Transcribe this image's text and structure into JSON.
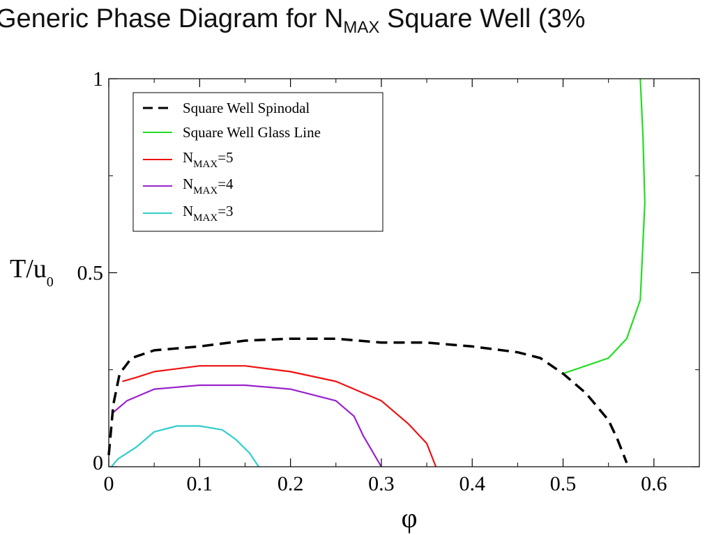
{
  "slide": {
    "title_pre": "Generic Phase Diagram for N",
    "title_sub": "MAX",
    "title_post": " Square Well  (3%"
  },
  "chart_data": {
    "type": "line",
    "title": "",
    "xlabel": "φ",
    "ylabel_main": "T/u",
    "ylabel_sub": "0",
    "xlim": [
      0,
      0.65
    ],
    "ylim": [
      0,
      1
    ],
    "x_ticks": [
      "0",
      "0.1",
      "0.2",
      "0.3",
      "0.4",
      "0.5",
      "0.6"
    ],
    "y_ticks": [
      "0",
      "0.5",
      "1"
    ],
    "grid": false,
    "legend_position": "top-left",
    "series": [
      {
        "key": "spinodal",
        "legend": "Square Well Spinodal",
        "color": "#000000",
        "dash": true,
        "points": [
          [
            0.0,
            0.03
          ],
          [
            0.005,
            0.16
          ],
          [
            0.012,
            0.24
          ],
          [
            0.025,
            0.28
          ],
          [
            0.05,
            0.3
          ],
          [
            0.1,
            0.31
          ],
          [
            0.15,
            0.325
          ],
          [
            0.2,
            0.33
          ],
          [
            0.25,
            0.33
          ],
          [
            0.3,
            0.32
          ],
          [
            0.35,
            0.32
          ],
          [
            0.4,
            0.31
          ],
          [
            0.45,
            0.295
          ],
          [
            0.475,
            0.28
          ],
          [
            0.5,
            0.24
          ],
          [
            0.525,
            0.19
          ],
          [
            0.55,
            0.12
          ],
          [
            0.56,
            0.07
          ],
          [
            0.57,
            0.01
          ]
        ]
      },
      {
        "key": "glass",
        "legend": "Square Well Glass Line",
        "color": "#22dd22",
        "dash": false,
        "points": [
          [
            0.5,
            0.24
          ],
          [
            0.55,
            0.28
          ],
          [
            0.57,
            0.33
          ],
          [
            0.585,
            0.43
          ],
          [
            0.59,
            0.68
          ],
          [
            0.588,
            0.85
          ],
          [
            0.585,
            1.0
          ]
        ]
      },
      {
        "key": "nmax5",
        "legend_main": "N",
        "legend_sub": "MAX",
        "legend_suffix": "=5",
        "color": "#ee1111",
        "dash": false,
        "points": [
          [
            0.015,
            0.22
          ],
          [
            0.03,
            0.23
          ],
          [
            0.05,
            0.245
          ],
          [
            0.1,
            0.26
          ],
          [
            0.15,
            0.26
          ],
          [
            0.2,
            0.245
          ],
          [
            0.25,
            0.22
          ],
          [
            0.3,
            0.17
          ],
          [
            0.33,
            0.11
          ],
          [
            0.35,
            0.06
          ],
          [
            0.36,
            0.0
          ]
        ]
      },
      {
        "key": "nmax4",
        "legend_main": "N",
        "legend_sub": "MAX",
        "legend_suffix": "=4",
        "color": "#9922cc",
        "dash": false,
        "points": [
          [
            0.005,
            0.14
          ],
          [
            0.02,
            0.17
          ],
          [
            0.03,
            0.18
          ],
          [
            0.05,
            0.2
          ],
          [
            0.1,
            0.21
          ],
          [
            0.15,
            0.21
          ],
          [
            0.2,
            0.2
          ],
          [
            0.25,
            0.17
          ],
          [
            0.27,
            0.13
          ],
          [
            0.28,
            0.08
          ],
          [
            0.29,
            0.04
          ],
          [
            0.3,
            0.0
          ]
        ]
      },
      {
        "key": "nmax3",
        "legend_main": "N",
        "legend_sub": "MAX",
        "legend_suffix": "=3",
        "color": "#33cccc",
        "dash": false,
        "points": [
          [
            0.003,
            0.0
          ],
          [
            0.01,
            0.02
          ],
          [
            0.03,
            0.05
          ],
          [
            0.05,
            0.09
          ],
          [
            0.075,
            0.105
          ],
          [
            0.1,
            0.105
          ],
          [
            0.125,
            0.095
          ],
          [
            0.14,
            0.07
          ],
          [
            0.155,
            0.035
          ],
          [
            0.165,
            0.0
          ]
        ]
      }
    ]
  }
}
